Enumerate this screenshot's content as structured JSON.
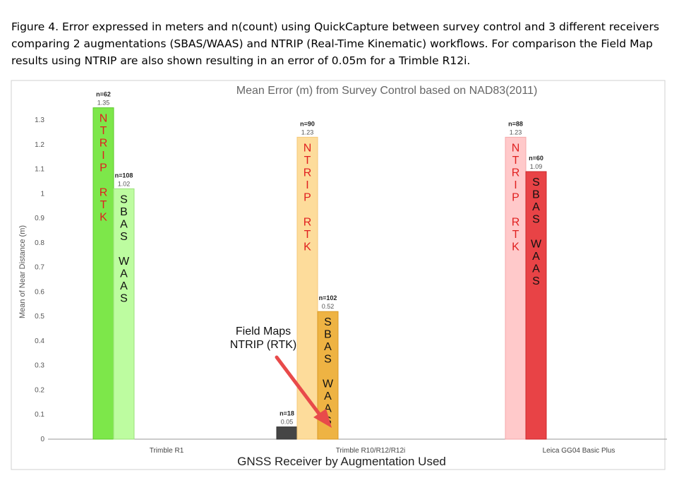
{
  "caption": "Figure 4.  Error expressed in meters and n(count) using QuickCapture between survey control and 3 different receivers comparing 2 augmentations (SBAS/WAAS) and NTRIP (Real-Time Kinematic) workflows.   For comparison the Field Map results using NTRIP are also shown resulting in an error of 0.05m for a Trimble R12i.",
  "chart_data": {
    "type": "bar",
    "title": "Mean Error (m) from Survey Control based on NAD83(2011)",
    "xlabel": "GNSS Receiver by Augmentation Used",
    "ylabel": "Mean of Near Distance (m)",
    "ylim": [
      0,
      1.3
    ],
    "yticks": [
      "0",
      "0.1",
      "0.2",
      "0.3",
      "0.4",
      "0.5",
      "0.6",
      "0.7",
      "0.8",
      "0.9",
      "1",
      "1.1",
      "1.2",
      "1.3"
    ],
    "categories": [
      "Trimble R1",
      "Trimble R10/R12/R12i",
      "Leica GG04 Basic Plus"
    ],
    "grid": false,
    "bars": [
      {
        "category": "Trimble R1",
        "slot": 0,
        "value": 1.35,
        "value_label": "1.35",
        "n_label": "n=62",
        "fill": "#7de74a",
        "stroke": "#5cc92c",
        "inner_text": [
          "N",
          "T",
          "R",
          "I",
          "P",
          "",
          "R",
          "T",
          "K"
        ],
        "inner_color": "#e02020"
      },
      {
        "category": "Trimble R1",
        "slot": 1,
        "value": 1.02,
        "value_label": "1.02",
        "n_label": "n=108",
        "fill": "#bdfca0",
        "stroke": "#9de07c",
        "inner_text": [
          "S",
          "B",
          "A",
          "S",
          "",
          "W",
          "A",
          "A",
          "S"
        ],
        "inner_color": "#111111"
      },
      {
        "category": "Trimble R10/R12/R12i",
        "slot": -1,
        "value": 0.05,
        "value_label": "0.05",
        "n_label": "n=18",
        "fill": "#454545",
        "stroke": "#333333",
        "inner_text": [],
        "inner_color": "#111111"
      },
      {
        "category": "Trimble R10/R12/R12i",
        "slot": 0,
        "value": 1.23,
        "value_label": "1.23",
        "n_label": "n=90",
        "fill": "#fddc9b",
        "stroke": "#f5c978",
        "inner_text": [
          "N",
          "T",
          "R",
          "I",
          "P",
          "",
          "R",
          "T",
          "K"
        ],
        "inner_color": "#e02020"
      },
      {
        "category": "Trimble R10/R12/R12i",
        "slot": 1,
        "value": 0.52,
        "value_label": "0.52",
        "n_label": "n=102",
        "fill": "#eeb343",
        "stroke": "#d99a25",
        "inner_text": [
          "S",
          "B",
          "A",
          "S",
          "",
          "W",
          "A",
          "A",
          "S"
        ],
        "inner_color": "#111111"
      },
      {
        "category": "Leica GG04 Basic Plus",
        "slot": 0,
        "value": 1.23,
        "value_label": "1.23",
        "n_label": "n=88",
        "fill": "#ffc9ca",
        "stroke": "#f5a8aa",
        "inner_text": [
          "N",
          "T",
          "R",
          "I",
          "P",
          "",
          "R",
          "T",
          "K"
        ],
        "inner_color": "#e02020"
      },
      {
        "category": "Leica GG04 Basic Plus",
        "slot": 1,
        "value": 1.09,
        "value_label": "1.09",
        "n_label": "n=60",
        "fill": "#e84346",
        "stroke": "#cc2a2d",
        "inner_text": [
          "S",
          "B",
          "A",
          "S",
          "",
          "W",
          "A",
          "A",
          "S"
        ],
        "inner_color": "#111111"
      }
    ],
    "annotation": {
      "lines": [
        "Field Maps",
        "NTRIP (RTK)"
      ],
      "arrow_color": "#e84a4a",
      "target": "Trimble R10/R12/R12i n=18"
    }
  }
}
